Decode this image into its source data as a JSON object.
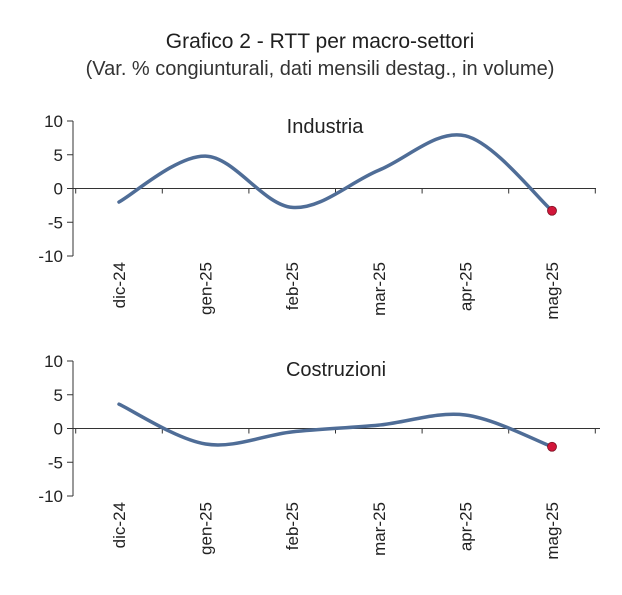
{
  "title": "Grafico 2 - RTT per macro-settori",
  "subtitle": "(Var. % congiunturali, dati mensili destag., in volume)",
  "colors": {
    "line": "#4f6d97",
    "marker": "#d2163a",
    "axis": "#333333"
  },
  "chart_data": [
    {
      "type": "line",
      "title": "Industria",
      "categories": [
        "dic-24",
        "gen-25",
        "feb-25",
        "mar-25",
        "apr-25",
        "mag-25"
      ],
      "values": [
        -2.0,
        4.8,
        -2.8,
        2.7,
        7.8,
        -3.3
      ],
      "yticks": [
        10,
        5,
        0,
        -5,
        -10
      ],
      "ylim": [
        -10,
        10
      ],
      "highlight_last": true
    },
    {
      "type": "line",
      "title": "Costruzioni",
      "categories": [
        "dic-24",
        "gen-25",
        "feb-25",
        "mar-25",
        "apr-25",
        "mag-25"
      ],
      "values": [
        3.6,
        -2.3,
        -0.5,
        0.5,
        2.0,
        -2.7
      ],
      "yticks": [
        10,
        5,
        0,
        -5,
        -10
      ],
      "ylim": [
        -10,
        10
      ],
      "highlight_last": true
    }
  ]
}
